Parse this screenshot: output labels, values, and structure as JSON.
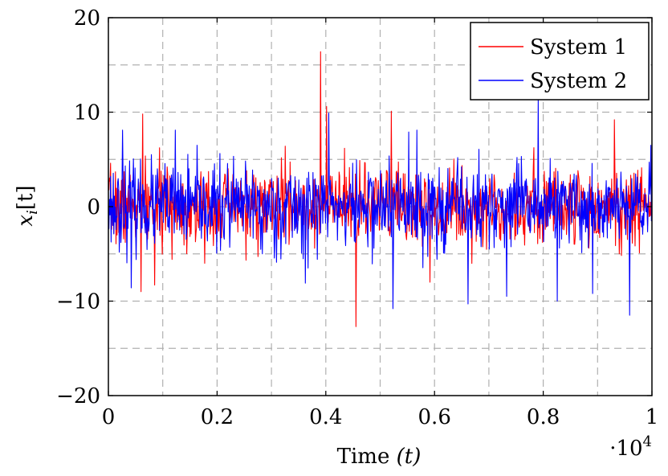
{
  "chart_data": {
    "type": "line",
    "xlabel_text": "Time ",
    "xlabel_var": "(t)",
    "ylabel_var": "x",
    "ylabel_sub": "i",
    "ylabel_arg": "[t]",
    "x_multiplier_base": "·10",
    "x_multiplier_exp": "4",
    "xlim": [
      0,
      10000
    ],
    "ylim": [
      -20,
      20
    ],
    "x_ticks": [
      0,
      2000,
      4000,
      6000,
      8000,
      10000
    ],
    "x_tick_labels": [
      "0",
      "0.2",
      "0.4",
      "0.6",
      "0.8",
      "1"
    ],
    "y_ticks": [
      -20,
      -10,
      0,
      10,
      20
    ],
    "y_tick_labels": [
      "−20",
      "−10",
      "0",
      "10",
      "20"
    ],
    "grid": true,
    "legend_position": "top-right",
    "num_samples": 1000,
    "series": [
      {
        "name": "System 1",
        "color": "#ff0000",
        "noise_seed": 7,
        "noise_scale": 2.0,
        "spikes": [
          [
            60,
            -9
          ],
          [
            63,
            9.8
          ],
          [
            85,
            -8.3
          ],
          [
            177,
            -6
          ],
          [
            325,
            6.4
          ],
          [
            390,
            16.4
          ],
          [
            401,
            10.6
          ],
          [
            455,
            -12.7
          ],
          [
            520,
            10.1
          ],
          [
            591,
            -8
          ],
          [
            930,
            9.2
          ],
          [
            939,
            -5
          ]
        ]
      },
      {
        "name": "System 2",
        "color": "#0000ff",
        "noise_seed": 23,
        "noise_scale": 2.2,
        "spikes": [
          [
            26,
            8.1
          ],
          [
            42,
            -8.6
          ],
          [
            123,
            8.1
          ],
          [
            283,
            -5
          ],
          [
            362,
            -8.1
          ],
          [
            405,
            9.9
          ],
          [
            523,
            -10.8
          ],
          [
            552,
            7.9
          ],
          [
            567,
            8.1
          ],
          [
            661,
            -10.3
          ],
          [
            732,
            -9.5
          ],
          [
            790,
            11.5
          ],
          [
            825,
            -10
          ],
          [
            890,
            -9.2
          ],
          [
            958,
            -11.5
          ]
        ]
      }
    ]
  }
}
